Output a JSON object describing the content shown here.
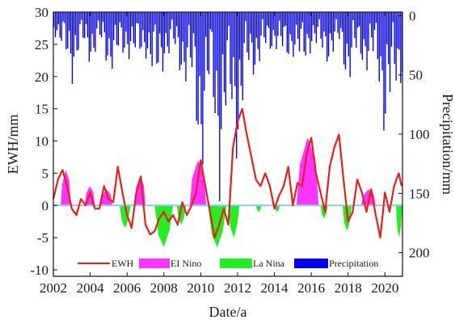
{
  "chart_data": {
    "type": "bar+line",
    "xlabel": "Date/a",
    "ylabel_left": "EWH/mm",
    "ylabel_right": "Precipitation/mm",
    "x_ticks": [
      2002,
      2004,
      2006,
      2008,
      2010,
      2012,
      2014,
      2016,
      2018,
      2020
    ],
    "ylim_left": [
      -11,
      30
    ],
    "y_ticks_left": [
      -10,
      -5,
      0,
      5,
      10,
      15,
      20,
      25,
      30
    ],
    "ylim_right_inverted": [
      -3,
      220
    ],
    "y_ticks_right": [
      0,
      50,
      100,
      150,
      200
    ],
    "xlim": [
      2002,
      2020.95
    ],
    "grid": false,
    "legend": {
      "placement": "bottom",
      "entries": [
        {
          "label": "EWH",
          "type": "line",
          "color": "#e8201c"
        },
        {
          "label": "EI Nino",
          "type": "fill",
          "color": "#ff33ff"
        },
        {
          "label": "La Nina",
          "type": "fill",
          "color": "#22ee22"
        },
        {
          "label": "Precipitation",
          "type": "fill",
          "color": "#0000ee"
        }
      ]
    },
    "zero_line_color": "#88ccee",
    "ewh_series": {
      "name": "EWH",
      "points": [
        [
          2002.0,
          1.0
        ],
        [
          2002.25,
          4.0
        ],
        [
          2002.5,
          5.5
        ],
        [
          2002.75,
          3.0
        ],
        [
          2003.0,
          -0.5
        ],
        [
          2003.25,
          -1.5
        ],
        [
          2003.5,
          1.0
        ],
        [
          2003.75,
          0.0
        ],
        [
          2004.0,
          2.0
        ],
        [
          2004.25,
          -0.5
        ],
        [
          2004.5,
          -0.5
        ],
        [
          2004.75,
          3.0
        ],
        [
          2005.0,
          1.0
        ],
        [
          2005.25,
          0.5
        ],
        [
          2005.5,
          6.0
        ],
        [
          2005.75,
          2.0
        ],
        [
          2006.0,
          -1.5
        ],
        [
          2006.25,
          -3.5
        ],
        [
          2006.5,
          2.0
        ],
        [
          2006.75,
          4.5
        ],
        [
          2007.0,
          -3.0
        ],
        [
          2007.25,
          -4.5
        ],
        [
          2007.5,
          -4.0
        ],
        [
          2007.75,
          -2.0
        ],
        [
          2008.0,
          -1.0
        ],
        [
          2008.25,
          -2.5
        ],
        [
          2008.5,
          -1.5
        ],
        [
          2008.75,
          -3.0
        ],
        [
          2009.0,
          0.5
        ],
        [
          2009.25,
          -1.5
        ],
        [
          2009.5,
          0.0
        ],
        [
          2009.75,
          2.0
        ],
        [
          2010.0,
          7.0
        ],
        [
          2010.25,
          3.0
        ],
        [
          2010.5,
          -1.0
        ],
        [
          2010.75,
          -5.0
        ],
        [
          2011.0,
          -3.0
        ],
        [
          2011.25,
          -0.5
        ],
        [
          2011.5,
          -3.0
        ],
        [
          2011.75,
          9.0
        ],
        [
          2012.0,
          13.0
        ],
        [
          2012.25,
          15.0
        ],
        [
          2012.5,
          11.0
        ],
        [
          2012.75,
          7.5
        ],
        [
          2013.0,
          4.0
        ],
        [
          2013.25,
          3.0
        ],
        [
          2013.5,
          5.0
        ],
        [
          2013.75,
          3.0
        ],
        [
          2014.0,
          -0.5
        ],
        [
          2014.25,
          1.5
        ],
        [
          2014.5,
          3.0
        ],
        [
          2014.75,
          6.0
        ],
        [
          2015.0,
          0.0
        ],
        [
          2015.25,
          3.5
        ],
        [
          2015.5,
          3.0
        ],
        [
          2015.75,
          8.0
        ],
        [
          2016.0,
          10.5
        ],
        [
          2016.25,
          5.0
        ],
        [
          2016.5,
          2.0
        ],
        [
          2016.75,
          -1.0
        ],
        [
          2017.0,
          6.0
        ],
        [
          2017.25,
          9.0
        ],
        [
          2017.5,
          11.0
        ],
        [
          2017.75,
          4.0
        ],
        [
          2018.0,
          -2.5
        ],
        [
          2018.25,
          -1.0
        ],
        [
          2018.5,
          4.0
        ],
        [
          2018.75,
          2.0
        ],
        [
          2019.0,
          -1.0
        ],
        [
          2019.25,
          2.5
        ],
        [
          2019.5,
          -1.5
        ],
        [
          2019.75,
          -5.0
        ],
        [
          2020.0,
          2.0
        ],
        [
          2020.25,
          -1.0
        ],
        [
          2020.5,
          3.0
        ],
        [
          2020.75,
          5.0
        ],
        [
          2020.9,
          3.0
        ]
      ]
    },
    "el_nino_periods": [
      [
        2002.4,
        2002.95,
        5.5
      ],
      [
        2003.7,
        2004.25,
        3.0
      ],
      [
        2004.55,
        2005.2,
        2.5
      ],
      [
        2006.4,
        2007.0,
        4.5
      ],
      [
        2009.4,
        2010.3,
        7.0
      ],
      [
        2015.2,
        2016.4,
        10.5
      ],
      [
        2018.7,
        2019.5,
        2.5
      ]
    ],
    "la_nina_periods": [
      [
        2005.6,
        2006.2,
        -3.5
      ],
      [
        2007.5,
        2008.5,
        -6.5
      ],
      [
        2008.7,
        2009.2,
        -3.0
      ],
      [
        2010.4,
        2011.4,
        -6.5
      ],
      [
        2011.5,
        2012.1,
        -5.0
      ],
      [
        2013.0,
        2013.3,
        -1.0
      ],
      [
        2014.0,
        2014.3,
        -1.0
      ],
      [
        2016.5,
        2016.9,
        -2.0
      ],
      [
        2017.7,
        2018.2,
        -4.0
      ],
      [
        2020.6,
        2020.95,
        -5.0
      ]
    ],
    "precipitation_profile": [
      [
        2002.0,
        10
      ],
      [
        2002.5,
        25
      ],
      [
        2003.0,
        40
      ],
      [
        2003.5,
        20
      ],
      [
        2004.0,
        30
      ],
      [
        2004.5,
        20
      ],
      [
        2005.0,
        35
      ],
      [
        2005.5,
        30
      ],
      [
        2006.0,
        25
      ],
      [
        2006.5,
        30
      ],
      [
        2007.0,
        25
      ],
      [
        2007.5,
        50
      ],
      [
        2008.0,
        30
      ],
      [
        2008.5,
        25
      ],
      [
        2009.0,
        40
      ],
      [
        2009.5,
        50
      ],
      [
        2010.0,
        100
      ],
      [
        2010.5,
        45
      ],
      [
        2011.0,
        110
      ],
      [
        2011.5,
        60
      ],
      [
        2012.0,
        90
      ],
      [
        2012.5,
        40
      ],
      [
        2013.0,
        35
      ],
      [
        2013.5,
        25
      ],
      [
        2014.0,
        20
      ],
      [
        2014.5,
        30
      ],
      [
        2015.0,
        25
      ],
      [
        2015.5,
        35
      ],
      [
        2016.0,
        20
      ],
      [
        2016.5,
        25
      ],
      [
        2017.0,
        30
      ],
      [
        2017.5,
        20
      ],
      [
        2018.0,
        45
      ],
      [
        2018.5,
        25
      ],
      [
        2019.0,
        35
      ],
      [
        2019.5,
        30
      ],
      [
        2020.0,
        80
      ],
      [
        2020.5,
        50
      ],
      [
        2020.9,
        40
      ]
    ],
    "precipitation_bar_step": 0.0833
  }
}
